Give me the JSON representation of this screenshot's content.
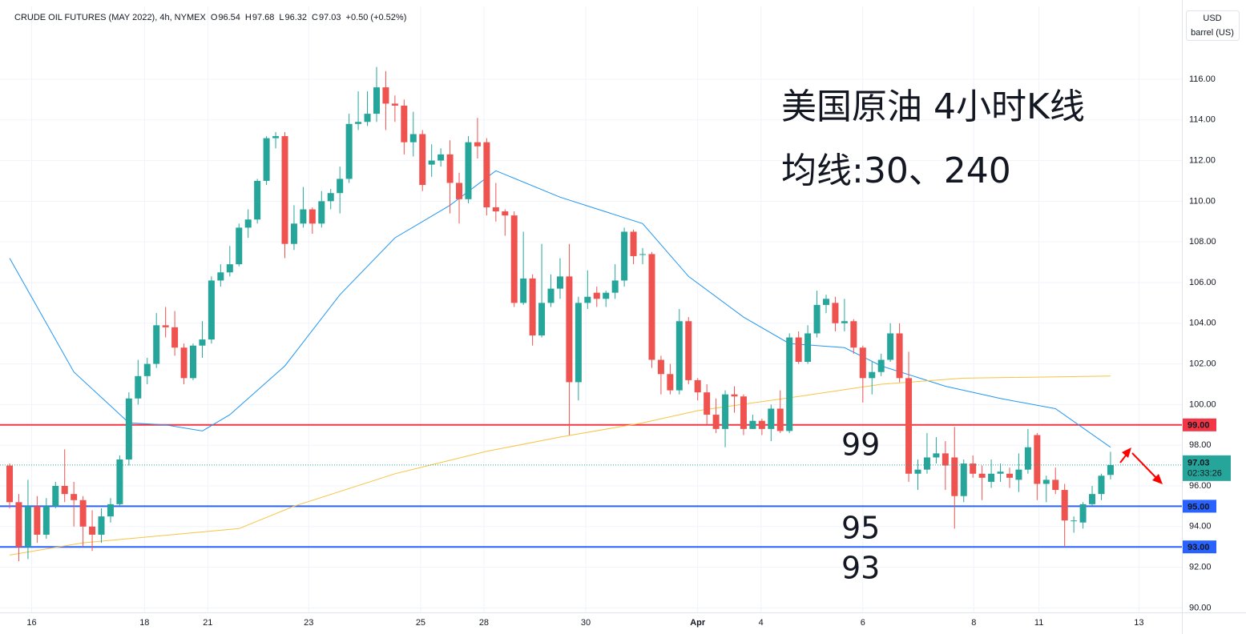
{
  "chart_data": {
    "type": "candlestick",
    "symbol": "CRUDE OIL FUTURES (MAY 2022), 4h, NYMEX",
    "ohlc_labels": [
      "O",
      "H",
      "L",
      "C"
    ],
    "change": "+0.50 (+0.52%)",
    "currency": "USD",
    "unit": "barrel (US)",
    "countdown": "02:33:26",
    "up_color": "#26a69a",
    "down_color": "#ef5350",
    "open": [
      97.0,
      95.2,
      93.0,
      95.0,
      93.6,
      95.0,
      96.0,
      95.6,
      95.3,
      94.0,
      93.6,
      94.5,
      95.1,
      97.3,
      100.3,
      101.4,
      102.0,
      103.9,
      103.8,
      102.8,
      101.3,
      102.9,
      103.2,
      106.1,
      106.5,
      106.9,
      108.7,
      109.1,
      111.0,
      113.1,
      113.2,
      107.9,
      108.9,
      109.6,
      108.9,
      110.0,
      110.4,
      111.1,
      113.8,
      113.9,
      114.3,
      115.6,
      114.8,
      114.7,
      112.9,
      113.3,
      111.8,
      112.0,
      112.3,
      110.9,
      110.1,
      112.9,
      112.9,
      109.7,
      109.5,
      109.3,
      105.0,
      106.2,
      103.4,
      105.0,
      105.7,
      106.3,
      101.1,
      105.0,
      105.5,
      105.2,
      105.5,
      106.1,
      108.5,
      107.4,
      107.4,
      102.2,
      101.5,
      100.7,
      104.1,
      101.2,
      100.6,
      99.5,
      98.8,
      100.5,
      100.4,
      98.8,
      99.2,
      98.8,
      99.8,
      98.7,
      103.3,
      102.1,
      103.5,
      104.9,
      105.0,
      104.0,
      104.1,
      102.8,
      101.3,
      101.6,
      102.2,
      103.5,
      101.3,
      96.6,
      96.8,
      97.4,
      97.6,
      97.4,
      95.5,
      97.1,
      96.6,
      96.2,
      96.6,
      96.6,
      96.3,
      96.8,
      98.5,
      96.1,
      96.3,
      95.8,
      94.3,
      94.2,
      95.1,
      95.6,
      96.54
    ],
    "high": [
      97.1,
      95.6,
      96.3,
      95.5,
      95.4,
      96.2,
      97.8,
      96.2,
      95.5,
      94.8,
      94.9,
      95.4,
      97.5,
      100.6,
      102.2,
      102.3,
      104.5,
      104.8,
      104.6,
      103.0,
      103.0,
      104.1,
      106.3,
      106.9,
      107.8,
      108.9,
      109.6,
      111.1,
      113.2,
      113.4,
      113.4,
      109.8,
      110.7,
      109.7,
      110.5,
      110.6,
      111.7,
      114.3,
      115.4,
      115.4,
      116.6,
      116.4,
      115.2,
      115.0,
      114.4,
      113.5,
      112.8,
      112.6,
      113.0,
      111.4,
      113.2,
      114.1,
      113.1,
      110.9,
      109.6,
      109.5,
      108.5,
      106.4,
      107.9,
      106.4,
      107.2,
      107.9,
      105.3,
      106.6,
      105.8,
      105.6,
      106.9,
      108.7,
      108.6,
      107.7,
      107.5,
      102.4,
      102.0,
      104.7,
      104.3,
      101.3,
      101.0,
      100.3,
      100.7,
      100.9,
      100.5,
      99.5,
      99.3,
      100.0,
      100.7,
      103.5,
      103.6,
      103.9,
      105.6,
      105.4,
      105.3,
      105.2,
      104.2,
      102.9,
      102.1,
      102.5,
      104.0,
      104.0,
      102.6,
      97.3,
      98.6,
      98.4,
      98.2,
      98.9,
      97.3,
      97.5,
      97.0,
      97.3,
      97.1,
      96.9,
      97.6,
      98.8,
      98.6,
      96.5,
      96.9,
      96.1,
      94.5,
      95.2,
      96.0,
      96.6,
      97.68
    ],
    "low": [
      94.9,
      92.3,
      92.4,
      93.2,
      93.4,
      94.9,
      95.2,
      94.0,
      93.0,
      92.8,
      93.2,
      94.2,
      95.0,
      97.0,
      100.0,
      101.0,
      101.8,
      103.3,
      102.4,
      101.0,
      101.2,
      102.3,
      103.0,
      105.8,
      106.3,
      106.8,
      108.2,
      108.9,
      110.8,
      112.6,
      107.2,
      107.6,
      108.7,
      108.4,
      108.7,
      109.6,
      109.4,
      110.9,
      113.5,
      113.7,
      113.9,
      113.5,
      113.9,
      112.3,
      112.2,
      110.5,
      111.2,
      111.7,
      109.4,
      108.9,
      109.9,
      112.1,
      109.3,
      109.0,
      108.3,
      104.8,
      104.9,
      102.9,
      103.3,
      104.8,
      105.2,
      98.5,
      100.2,
      104.7,
      104.8,
      104.8,
      105.2,
      105.8,
      106.9,
      106.9,
      101.8,
      100.5,
      100.5,
      100.5,
      101.0,
      100.2,
      99.0,
      98.6,
      97.9,
      99.6,
      98.5,
      98.8,
      98.5,
      98.2,
      98.6,
      98.6,
      102.0,
      102.0,
      103.3,
      104.5,
      103.6,
      103.6,
      102.5,
      100.1,
      100.5,
      101.4,
      102.1,
      101.1,
      96.2,
      95.8,
      96.6,
      97.1,
      95.8,
      93.9,
      95.2,
      96.4,
      95.3,
      95.9,
      96.2,
      95.9,
      95.7,
      96.6,
      95.3,
      95.2,
      95.6,
      93.0,
      93.7,
      93.9,
      95.0,
      95.3,
      96.32
    ],
    "close": [
      95.2,
      93.0,
      95.0,
      93.6,
      95.0,
      96.0,
      95.6,
      95.3,
      94.0,
      93.6,
      94.5,
      95.1,
      97.3,
      100.3,
      101.4,
      102.0,
      103.9,
      103.8,
      102.8,
      101.3,
      102.9,
      103.2,
      106.1,
      106.5,
      106.9,
      108.7,
      109.1,
      111.0,
      113.1,
      113.2,
      107.9,
      108.9,
      109.6,
      108.9,
      110.0,
      110.4,
      111.1,
      113.8,
      113.9,
      114.3,
      115.6,
      114.8,
      114.7,
      112.9,
      113.3,
      110.8,
      112.0,
      112.3,
      110.9,
      110.1,
      112.9,
      112.7,
      109.7,
      109.5,
      109.3,
      105.0,
      106.2,
      103.4,
      105.0,
      105.7,
      106.3,
      101.1,
      105.0,
      105.3,
      105.2,
      105.5,
      106.1,
      108.5,
      107.3,
      107.4,
      102.2,
      101.5,
      100.7,
      104.1,
      101.2,
      100.6,
      99.5,
      98.8,
      100.5,
      100.4,
      98.8,
      99.2,
      98.8,
      99.8,
      98.7,
      103.3,
      102.1,
      103.5,
      104.9,
      105.2,
      104.0,
      104.1,
      102.8,
      101.3,
      101.6,
      102.2,
      103.5,
      101.3,
      96.6,
      96.8,
      97.4,
      97.6,
      97.0,
      95.5,
      97.1,
      96.6,
      96.4,
      96.6,
      96.7,
      96.4,
      96.8,
      97.9,
      96.1,
      96.3,
      95.8,
      94.3,
      94.3,
      95.1,
      95.6,
      96.5,
      97.03
    ],
    "series": [
      {
        "name": "MA 30",
        "color": "#2196f3",
        "x": [
          0,
          7,
          13,
          17,
          21,
          24,
          30,
          36,
          42,
          48,
          53,
          60,
          69,
          74,
          80,
          85,
          91,
          95,
          102,
          108,
          114,
          120
        ],
        "values": [
          107.2,
          101.6,
          99.1,
          99.0,
          98.7,
          99.5,
          101.9,
          105.4,
          108.2,
          109.8,
          111.5,
          110.2,
          108.9,
          106.3,
          104.3,
          103.0,
          102.8,
          101.9,
          100.9,
          100.3,
          99.8,
          97.9
        ]
      },
      {
        "name": "MA 240",
        "color": "#f7c443",
        "x": [
          0,
          8,
          25,
          31,
          42,
          52,
          60,
          69,
          75,
          86,
          95,
          104,
          120
        ],
        "values": [
          92.6,
          93.2,
          93.9,
          95.0,
          96.6,
          97.7,
          98.4,
          99.1,
          99.7,
          100.4,
          101.0,
          101.3,
          101.4
        ]
      }
    ],
    "levels": [
      {
        "value": 99,
        "label": "99.00",
        "color": "#f23645"
      },
      {
        "value": 95,
        "label": "95.00",
        "color": "#2962ff"
      },
      {
        "value": 93,
        "label": "93.00",
        "color": "#2962ff"
      }
    ],
    "annotations": [
      "美国原油 4小时K线",
      "均线:30、240",
      "99",
      "95",
      "93"
    ],
    "annotation_color": "#e8333c",
    "xlim": [
      -1.05,
      127.78
    ],
    "xticks": [
      {
        "value": 2.4,
        "label": "16"
      },
      {
        "value": 14.7,
        "label": "18"
      },
      {
        "value": 21.6,
        "label": "21"
      },
      {
        "value": 32.6,
        "label": "23"
      },
      {
        "value": 44.8,
        "label": "25"
      },
      {
        "value": 51.7,
        "label": "28"
      },
      {
        "value": 62.8,
        "label": "30"
      },
      {
        "value": 75.0,
        "label": "Apr"
      },
      {
        "value": 81.9,
        "label": "4"
      },
      {
        "value": 93.0,
        "label": "6"
      },
      {
        "value": 105.1,
        "label": "8"
      },
      {
        "value": 112.2,
        "label": "11"
      },
      {
        "value": 123.1,
        "label": "13"
      }
    ],
    "ylim": [
      89.78,
      119.58
    ],
    "yticks": [
      {
        "value": 90,
        "label": "90.00"
      },
      {
        "value": 92,
        "label": "92.00"
      },
      {
        "value": 94,
        "label": "94.00"
      },
      {
        "value": 96,
        "label": "96.00"
      },
      {
        "value": 98,
        "label": "98.00"
      },
      {
        "value": 100,
        "label": "100.00"
      },
      {
        "value": 102,
        "label": "102.00"
      },
      {
        "value": 104,
        "label": "104.00"
      },
      {
        "value": 106,
        "label": "106.00"
      },
      {
        "value": 108,
        "label": "108.00"
      },
      {
        "value": 110,
        "label": "110.00"
      },
      {
        "value": 112,
        "label": "112.00"
      },
      {
        "value": 114,
        "label": "114.00"
      },
      {
        "value": 116,
        "label": "116.00"
      }
    ],
    "grid": true
  }
}
